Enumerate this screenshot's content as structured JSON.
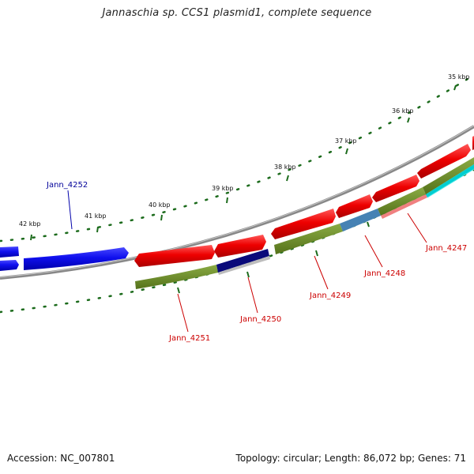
{
  "title": "Jannaschia sp. CCS1 plasmid1, complete sequence",
  "footer": {
    "accession": "Accession: NC_007801",
    "summary": "Topology: circular; Length: 86,072 bp; Genes: 71"
  },
  "ruler": {
    "labels": [
      "35 kbp",
      "36 kbp",
      "37 kbp",
      "38 kbp",
      "39 kbp",
      "40 kbp",
      "41 kbp",
      "42 kbp"
    ]
  },
  "gene_labels": {
    "blue_gene": "Jann_4252",
    "genes": [
      "Jann_4251",
      "Jann_4250",
      "Jann_4249",
      "Jann_4248",
      "Jann_4247"
    ]
  },
  "colors": {
    "backbone": "#8c8c8c",
    "cds": "#ee0000",
    "highlighted_gene": "#1010ee",
    "tick": "#1c6b1c",
    "label_red": "#cc0000",
    "label_blue": "#000099",
    "cog_olive": "#6b8e23",
    "cog_navy": "#0a0a7a",
    "cog_steelblue": "#4682b4",
    "cog_pink": "#f08080",
    "cog_cyan": "#00ced1"
  }
}
